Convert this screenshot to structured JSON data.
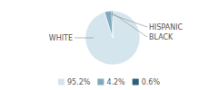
{
  "chart_data": {
    "type": "pie",
    "categories": [
      "WHITE",
      "HISPANIC",
      "BLACK"
    ],
    "values": [
      95.2,
      4.2,
      0.6
    ],
    "value_labels": [
      "95.2%",
      "4.2%",
      "0.6%"
    ],
    "colors": [
      "#d5e5ee",
      "#7faabf",
      "#2d5f7a"
    ],
    "legend": "bottom"
  }
}
